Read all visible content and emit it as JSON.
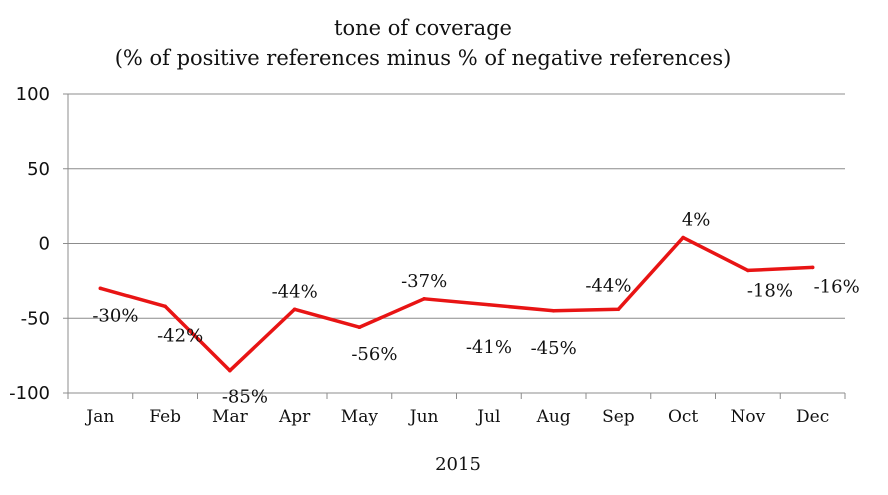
{
  "chart_data": {
    "type": "line",
    "title": [
      "tone of coverage",
      "(% of positive references minus % of negative references)"
    ],
    "xlabel": "2015",
    "ylabel": "",
    "ylim": [
      -100,
      100
    ],
    "yticks": [
      100,
      50,
      0,
      -50,
      -100
    ],
    "categories": [
      "Jan",
      "Feb",
      "Mar",
      "Apr",
      "May",
      "Jun",
      "Jul",
      "Aug",
      "Sep",
      "Oct",
      "Nov",
      "Dec"
    ],
    "series": [
      {
        "name": "tone of coverage",
        "color": "#e81414",
        "values": [
          -30,
          -42,
          -85,
          -44,
          -56,
          -37,
          -41,
          -45,
          -44,
          4,
          -18,
          -16
        ],
        "labels": [
          "-30%",
          "-42%",
          "-85%",
          "-44%",
          "-56%",
          "-37%",
          "-41%",
          "-45%",
          "-44%",
          "4%",
          "-18%",
          "-16%"
        ]
      }
    ],
    "grid": true,
    "legend": "none"
  }
}
